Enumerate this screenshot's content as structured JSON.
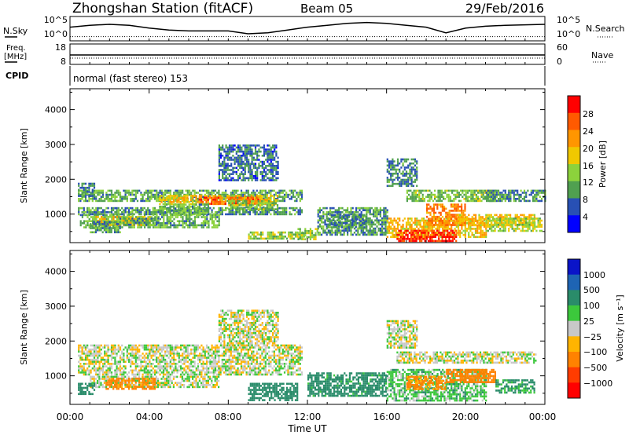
{
  "header": {
    "station": "Zhongshan Station (fitACF)",
    "beam": "Beam 05",
    "date": "29/Feb/2016"
  },
  "strip_labels": {
    "nsky": "N.Sky",
    "nsky_ticks": [
      "10^5",
      "10^0"
    ],
    "nsearch": "N.Search",
    "nsearch_ticks": [
      "10^5",
      "10^0"
    ],
    "freq_line1": "Freq.",
    "freq_line2": "[MHz]",
    "freq_ticks": [
      "18",
      "8"
    ],
    "nave": "Nave",
    "nave_ticks": [
      "60",
      "0"
    ],
    "cpid": "CPID",
    "cpid_text": "normal (fast stereo) 153"
  },
  "panels": {
    "ylabel": "Slant Range [km]",
    "xlabel": "Time UT",
    "yticks": [
      "4000",
      "3000",
      "2000",
      "1000"
    ],
    "xticks": [
      "00:00",
      "04:00",
      "08:00",
      "12:00",
      "16:00",
      "20:00",
      "00:00"
    ]
  },
  "power_colorbar": {
    "label": "Power [dB]",
    "ticks": [
      "28",
      "24",
      "20",
      "16",
      "12",
      "8",
      "4"
    ],
    "colors": [
      "#ff0000",
      "#ff5a00",
      "#ff9600",
      "#f0c800",
      "#8cd23c",
      "#50a050",
      "#2850b4",
      "#0000ff"
    ]
  },
  "velocity_colorbar": {
    "label": "Velocity [m s⁻¹]",
    "ticks": [
      "1000",
      "500",
      "100",
      "25",
      "−25",
      "−100",
      "−500",
      "−1000"
    ],
    "colors": [
      "#0a14c8",
      "#1e64b4",
      "#2a8c6a",
      "#3cc83c",
      "#c8c8c8",
      "#ffb400",
      "#ff8200",
      "#ff3c00",
      "#ff0000"
    ]
  },
  "chart_data": [
    {
      "type": "line",
      "title": "Zhongshan Station (fitACF) Beam 05 29/Feb/2016",
      "xlabel": "",
      "ylabel": "N.Sky / N.Search",
      "series": [
        {
          "name": "N.Sky",
          "x": [
            0,
            1,
            2,
            3,
            4,
            5,
            6,
            7,
            8,
            9,
            10,
            11,
            12,
            13,
            14,
            15,
            16,
            17,
            18,
            19,
            20,
            21,
            22,
            24
          ],
          "values": [
            0.6,
            0.7,
            0.75,
            0.7,
            0.55,
            0.45,
            0.4,
            0.4,
            0.4,
            0.25,
            0.3,
            0.45,
            0.6,
            0.7,
            0.8,
            0.85,
            0.8,
            0.7,
            0.6,
            0.3,
            0.55,
            0.65,
            0.7,
            0.75
          ]
        },
        {
          "name": "N.Search",
          "x": [
            0,
            24
          ],
          "values": [
            0.1,
            0.1
          ]
        }
      ]
    },
    {
      "type": "line",
      "title": "",
      "xlabel": "",
      "ylabel": "Freq. [MHz] / Nave",
      "series": [
        {
          "name": "Freq.",
          "x": [
            0,
            24
          ],
          "values": [
            11,
            11
          ]
        },
        {
          "name": "Nave",
          "x": [
            0,
            24
          ],
          "values": [
            24,
            24
          ]
        }
      ]
    },
    {
      "type": "heatmap",
      "title": "",
      "xlabel": "Time UT",
      "ylabel": "Slant Range [km]",
      "colorbar": "Power [dB]",
      "xlim": [
        0,
        24
      ],
      "ylim": [
        180,
        4600
      ],
      "clim": [
        0,
        30
      ],
      "regions": [
        {
          "t": [
            0.4,
            11.7
          ],
          "r": [
            1350,
            1700
          ],
          "v": 10
        },
        {
          "t": [
            4.5,
            10.5
          ],
          "r": [
            1300,
            1550
          ],
          "v": 17
        },
        {
          "t": [
            6.5,
            9.5
          ],
          "r": [
            1320,
            1500
          ],
          "v": 24
        },
        {
          "t": [
            0.4,
            11.7
          ],
          "r": [
            1000,
            1200
          ],
          "v": 9
        },
        {
          "t": [
            0.5,
            7.5
          ],
          "r": [
            600,
            1000
          ],
          "v": 11
        },
        {
          "t": [
            1.2,
            4.0
          ],
          "r": [
            680,
            950
          ],
          "v": 17
        },
        {
          "t": [
            0.4,
            1.2
          ],
          "r": [
            1500,
            1900
          ],
          "v": 8
        },
        {
          "t": [
            1.0,
            2.5
          ],
          "r": [
            500,
            800
          ],
          "v": 9
        },
        {
          "t": [
            2.5,
            4.5
          ],
          "r": [
            700,
            900
          ],
          "v": 9
        },
        {
          "t": [
            4.5,
            7.0
          ],
          "r": [
            1050,
            1300
          ],
          "v": 11
        },
        {
          "t": [
            8.0,
            10.5
          ],
          "r": [
            1150,
            1400
          ],
          "v": 12
        },
        {
          "t": [
            7.5,
            10.5
          ],
          "r": [
            2000,
            3000
          ],
          "v": 7
        },
        {
          "t": [
            9.0,
            11.8
          ],
          "r": [
            300,
            500
          ],
          "v": 13
        },
        {
          "t": [
            11.5,
            12.5
          ],
          "r": [
            300,
            600
          ],
          "v": 14
        },
        {
          "t": [
            12.5,
            16.0
          ],
          "r": [
            400,
            1200
          ],
          "v": 9
        },
        {
          "t": [
            16.0,
            21.0
          ],
          "r": [
            350,
            900
          ],
          "v": 18
        },
        {
          "t": [
            16.5,
            19.5
          ],
          "r": [
            250,
            550
          ],
          "v": 27
        },
        {
          "t": [
            18.0,
            20.0
          ],
          "r": [
            700,
            1300
          ],
          "v": 22
        },
        {
          "t": [
            19.5,
            23.5
          ],
          "r": [
            700,
            1000
          ],
          "v": 18
        },
        {
          "t": [
            17.0,
            21.5
          ],
          "r": [
            1400,
            1700
          ],
          "v": 12
        },
        {
          "t": [
            21.0,
            24.0
          ],
          "r": [
            1400,
            1700
          ],
          "v": 9
        },
        {
          "t": [
            21.0,
            23.8
          ],
          "r": [
            500,
            900
          ],
          "v": 14
        },
        {
          "t": [
            16.0,
            17.5
          ],
          "r": [
            1800,
            2600
          ],
          "v": 8
        },
        {
          "t": [
            13.0,
            15.0
          ],
          "r": [
            600,
            1000
          ],
          "v": 8
        }
      ]
    },
    {
      "type": "heatmap",
      "title": "",
      "xlabel": "Time UT",
      "ylabel": "Slant Range [km]",
      "colorbar": "Velocity [m s⁻¹]",
      "xlim": [
        0,
        24
      ],
      "ylim": [
        180,
        4600
      ],
      "clim": [
        -1000,
        1000
      ],
      "regions": [
        {
          "t": [
            0.4,
            11.7
          ],
          "r": [
            1350,
            1900
          ],
          "v": 0
        },
        {
          "t": [
            0.4,
            11.7
          ],
          "r": [
            1050,
            1300
          ],
          "v": 10
        },
        {
          "t": [
            1.0,
            7.5
          ],
          "r": [
            700,
            1000
          ],
          "v": 10
        },
        {
          "t": [
            1.8,
            4.3
          ],
          "r": [
            650,
            950
          ],
          "v": -150
        },
        {
          "t": [
            0.4,
            1.2
          ],
          "r": [
            500,
            800
          ],
          "v": 200
        },
        {
          "t": [
            7.5,
            10.5
          ],
          "r": [
            1900,
            2900
          ],
          "v": 0
        },
        {
          "t": [
            9.0,
            11.5
          ],
          "r": [
            300,
            800
          ],
          "v": 300
        },
        {
          "t": [
            12.0,
            16.0
          ],
          "r": [
            400,
            1100
          ],
          "v": 150
        },
        {
          "t": [
            16.0,
            21.0
          ],
          "r": [
            300,
            1200
          ],
          "v": 60
        },
        {
          "t": [
            17.0,
            19.0
          ],
          "r": [
            600,
            1000
          ],
          "v": -120
        },
        {
          "t": [
            19.0,
            21.5
          ],
          "r": [
            800,
            1200
          ],
          "v": -200
        },
        {
          "t": [
            16.5,
            23.5
          ],
          "r": [
            1400,
            1700
          ],
          "v": 0
        },
        {
          "t": [
            21.5,
            23.5
          ],
          "r": [
            500,
            900
          ],
          "v": 120
        },
        {
          "t": [
            16.0,
            17.5
          ],
          "r": [
            1800,
            2600
          ],
          "v": 0
        }
      ]
    }
  ]
}
